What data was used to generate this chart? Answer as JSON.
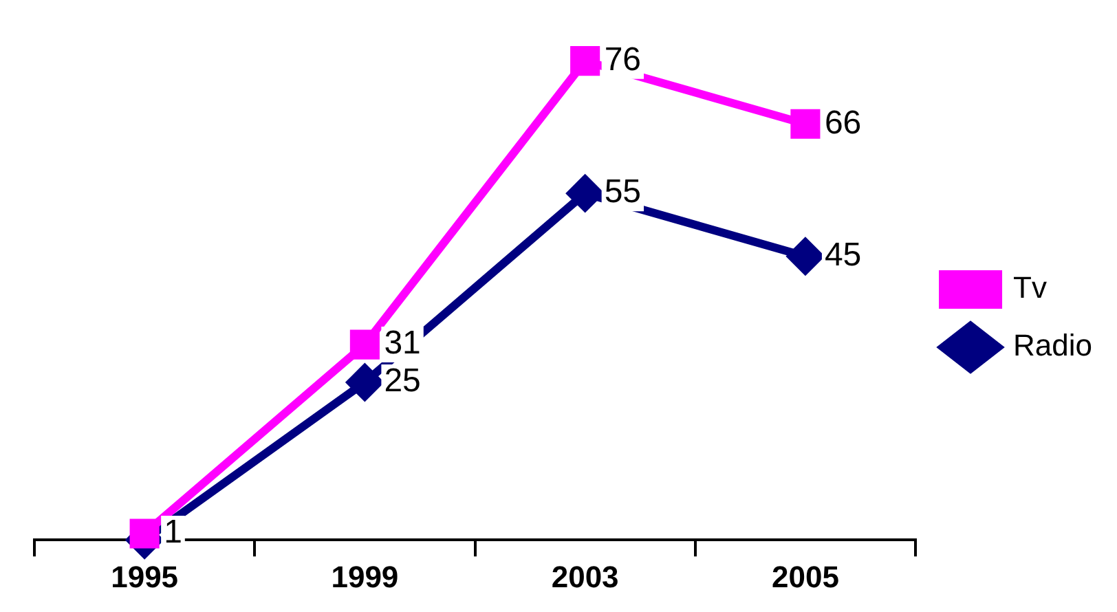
{
  "chart_data": {
    "type": "line",
    "categories": [
      "1995",
      "1999",
      "2003",
      "2005"
    ],
    "series": [
      {
        "name": "Tv",
        "color": "#ff00ff",
        "marker": "square",
        "values": [
          1,
          31,
          76,
          66
        ],
        "value_labels": [
          "1",
          "31",
          "76",
          "66"
        ]
      },
      {
        "name": "Radio",
        "color": "#000080",
        "marker": "diamond",
        "values": [
          0,
          25,
          55,
          45
        ],
        "value_labels": [
          null,
          "25",
          "55",
          "45"
        ]
      }
    ],
    "legend": "right",
    "grid": false
  }
}
